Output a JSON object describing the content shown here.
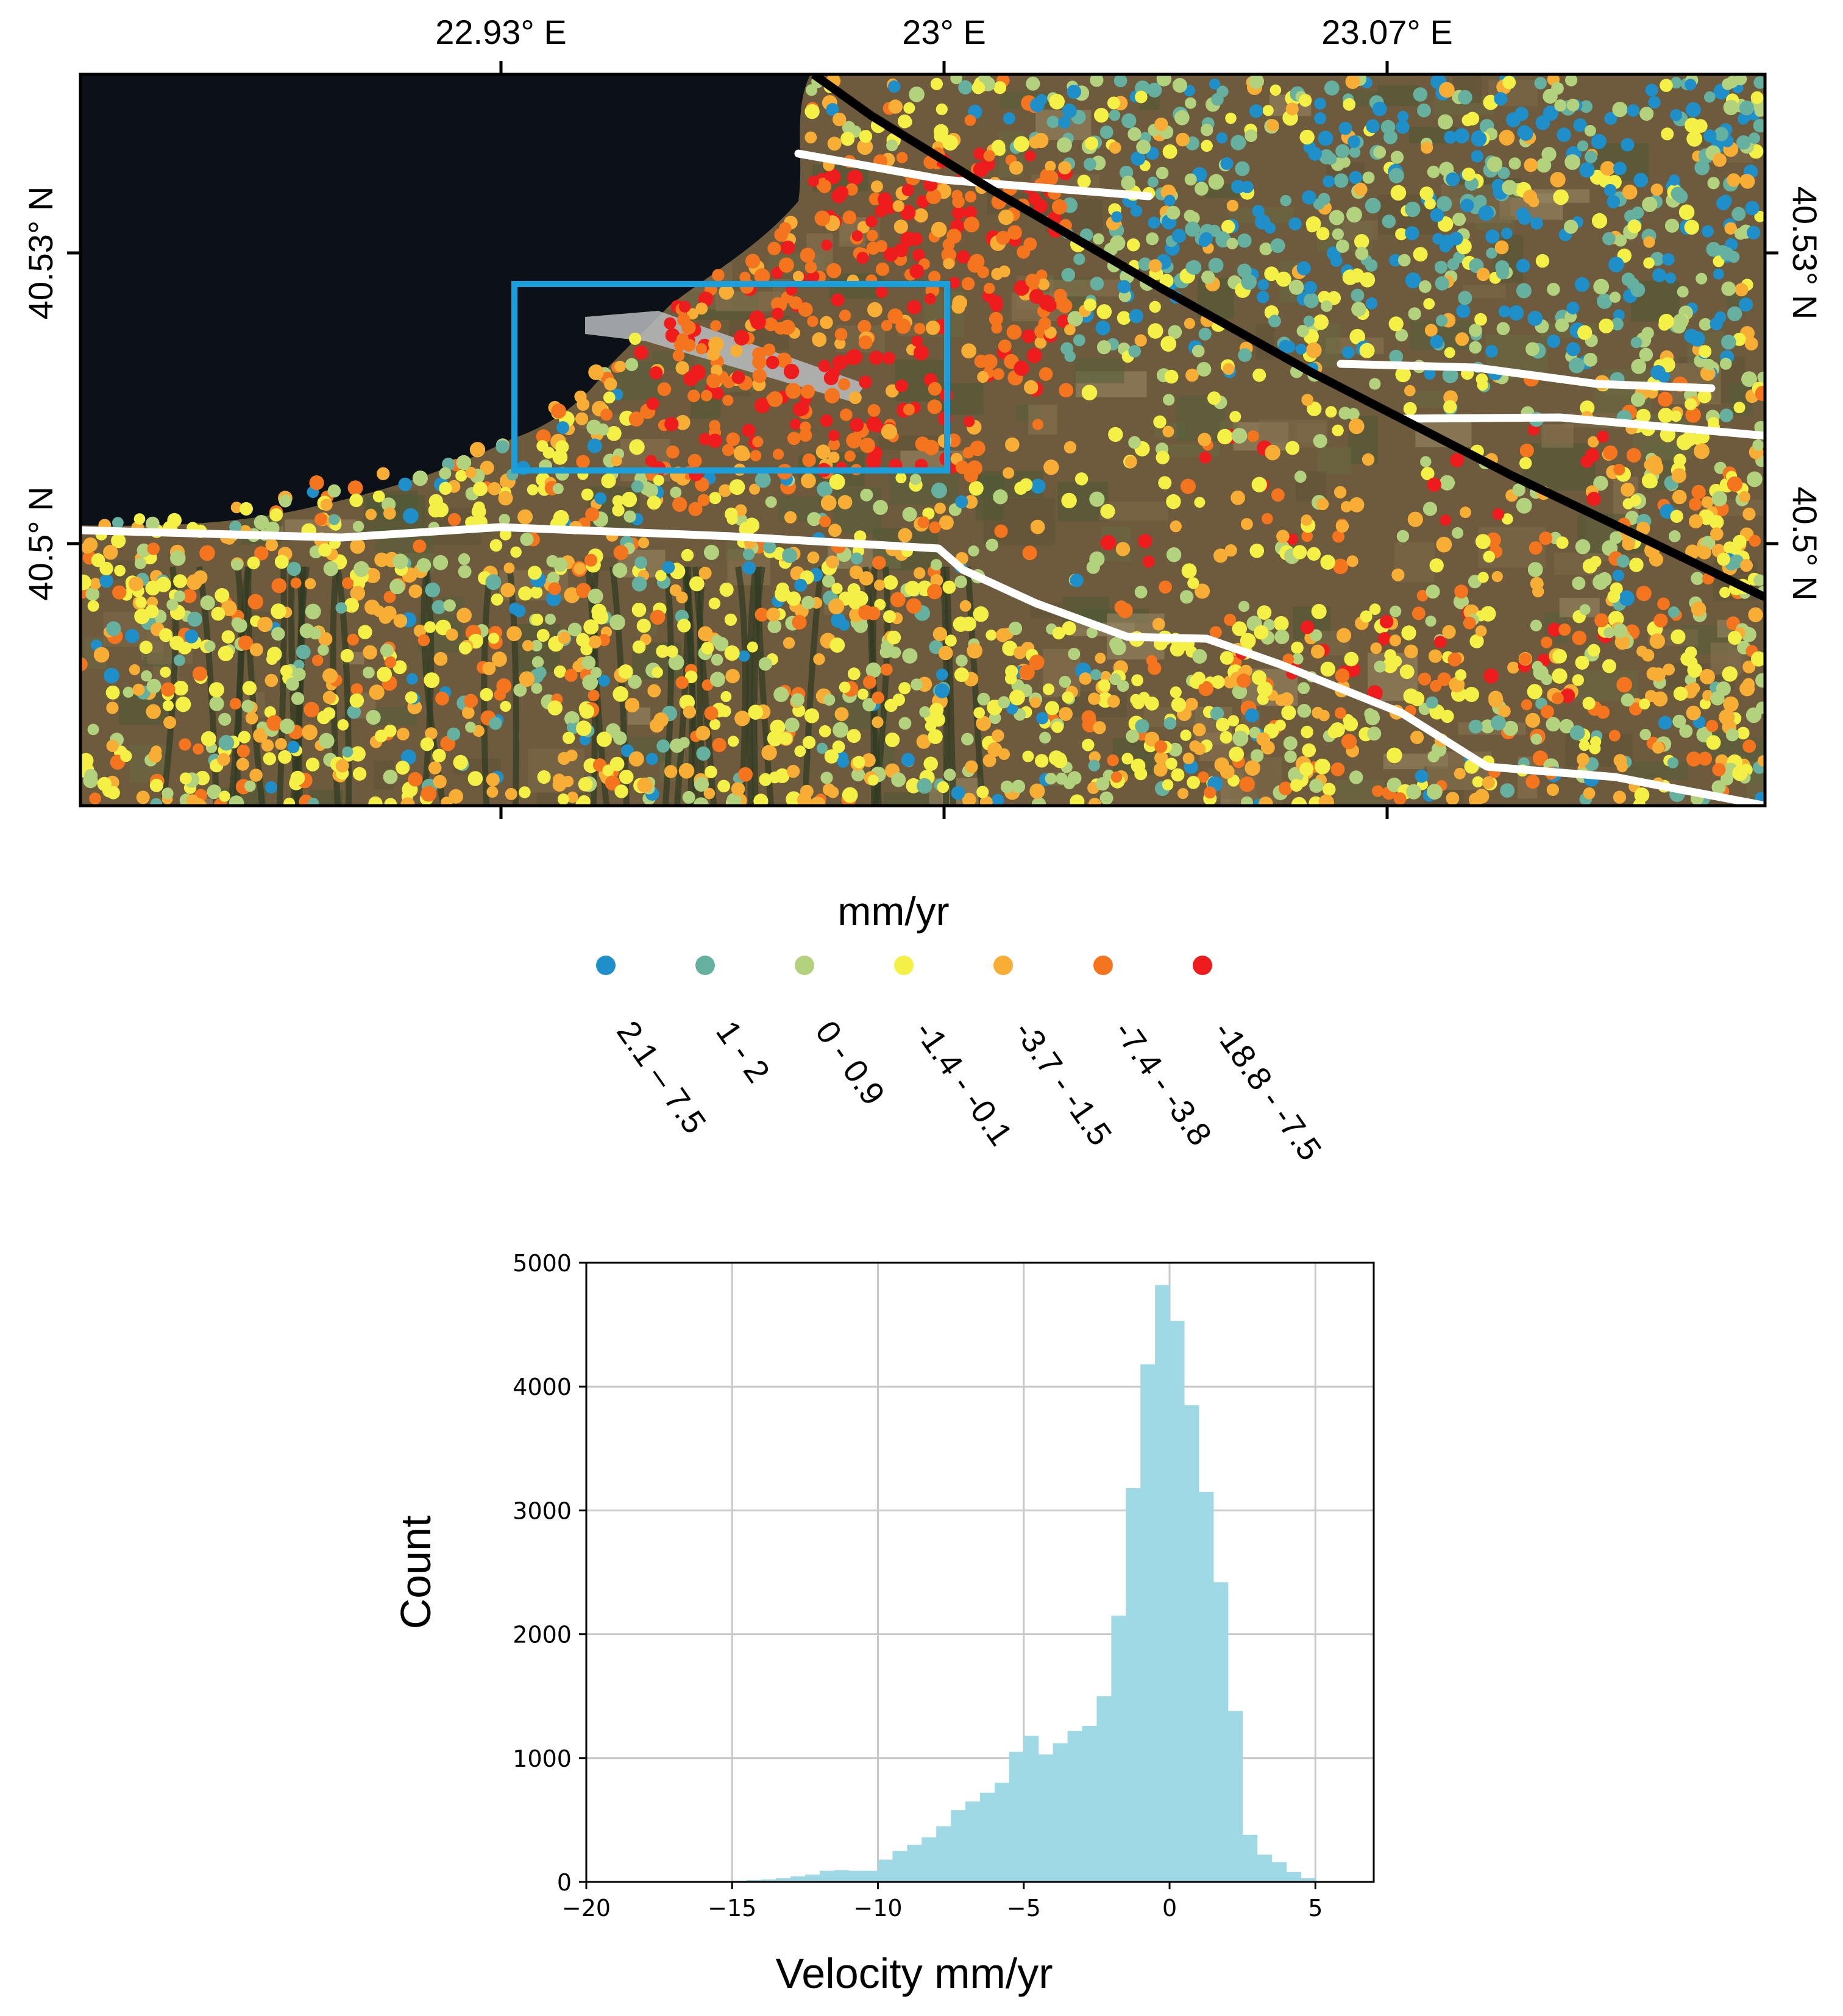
{
  "map": {
    "x_ticks": [
      "22.93° E",
      "23° E",
      "23.07° E"
    ],
    "y_ticks_left": [
      "40.53° N",
      "40.5° N"
    ],
    "y_ticks_right": [
      "40.53° N",
      "40.5° N"
    ]
  },
  "legend": {
    "title": "mm/yr",
    "classes": [
      {
        "label": "2.1 – 7.5",
        "color": "#1f8fc9"
      },
      {
        "label": "1 - 2",
        "color": "#66b0a0"
      },
      {
        "label": "0 - 0.9",
        "color": "#b3d27e"
      },
      {
        "label": "-1.4 - -0.1",
        "color": "#f5f046"
      },
      {
        "label": "-3.7 - -1.5",
        "color": "#f8ad35"
      },
      {
        "label": "-7.4 - -3.8",
        "color": "#f5751e"
      },
      {
        "label": "-18.8 - -7.5",
        "color": "#ee1c1c"
      }
    ]
  },
  "colors": {
    "study_area_box": "#19a0dc",
    "fault_line": "#000000",
    "boundary_lines": "#ffffff",
    "sea": "#0c1117",
    "land": "#6e5a3c",
    "histogram_bar": "#9fd9e6"
  },
  "chart_data": {
    "type": "bar",
    "xlabel": "Velocity mm/yr",
    "ylabel": "Count",
    "xlim": [
      -20,
      7
    ],
    "ylim": [
      0,
      5000
    ],
    "x_ticks": [
      -20,
      -15,
      -10,
      -5,
      0,
      5
    ],
    "y_ticks": [
      0,
      1000,
      2000,
      3000,
      4000,
      5000
    ],
    "x_tick_labels": [
      "−20",
      "−15",
      "−10",
      "−5",
      "0",
      "5"
    ],
    "y_tick_labels": [
      "0",
      "1000",
      "2000",
      "3000",
      "4000",
      "5000"
    ],
    "grid": true,
    "bin_width": 0.5,
    "bins": [
      {
        "x0": -15.5,
        "x1": -15.0,
        "count": 5
      },
      {
        "x0": -15.0,
        "x1": -14.5,
        "count": 10
      },
      {
        "x0": -14.5,
        "x1": -14.0,
        "count": 15
      },
      {
        "x0": -14.0,
        "x1": -13.5,
        "count": 20
      },
      {
        "x0": -13.5,
        "x1": -13.0,
        "count": 30
      },
      {
        "x0": -13.0,
        "x1": -12.5,
        "count": 45
      },
      {
        "x0": -12.5,
        "x1": -12.0,
        "count": 60
      },
      {
        "x0": -12.0,
        "x1": -11.5,
        "count": 90
      },
      {
        "x0": -11.5,
        "x1": -11.0,
        "count": 95
      },
      {
        "x0": -11.0,
        "x1": -10.5,
        "count": 90
      },
      {
        "x0": -10.5,
        "x1": -10.0,
        "count": 90
      },
      {
        "x0": -10.0,
        "x1": -9.5,
        "count": 180
      },
      {
        "x0": -9.5,
        "x1": -9.0,
        "count": 250
      },
      {
        "x0": -9.0,
        "x1": -8.5,
        "count": 300
      },
      {
        "x0": -8.5,
        "x1": -8.0,
        "count": 360
      },
      {
        "x0": -8.0,
        "x1": -7.5,
        "count": 450
      },
      {
        "x0": -7.5,
        "x1": -7.0,
        "count": 580
      },
      {
        "x0": -7.0,
        "x1": -6.5,
        "count": 650
      },
      {
        "x0": -6.5,
        "x1": -6.0,
        "count": 720
      },
      {
        "x0": -6.0,
        "x1": -5.5,
        "count": 800
      },
      {
        "x0": -5.5,
        "x1": -5.0,
        "count": 1050
      },
      {
        "x0": -5.0,
        "x1": -4.5,
        "count": 1180
      },
      {
        "x0": -4.5,
        "x1": -4.0,
        "count": 1030
      },
      {
        "x0": -4.0,
        "x1": -3.5,
        "count": 1120
      },
      {
        "x0": -3.5,
        "x1": -3.0,
        "count": 1220
      },
      {
        "x0": -3.0,
        "x1": -2.5,
        "count": 1260
      },
      {
        "x0": -2.5,
        "x1": -2.0,
        "count": 1500
      },
      {
        "x0": -2.0,
        "x1": -1.5,
        "count": 2150
      },
      {
        "x0": -1.5,
        "x1": -1.0,
        "count": 3180
      },
      {
        "x0": -1.0,
        "x1": -0.5,
        "count": 4180
      },
      {
        "x0": -0.5,
        "x1": 0.0,
        "count": 4820
      },
      {
        "x0": 0.0,
        "x1": 0.5,
        "count": 4530
      },
      {
        "x0": 0.5,
        "x1": 1.0,
        "count": 3850
      },
      {
        "x0": 1.0,
        "x1": 1.5,
        "count": 3150
      },
      {
        "x0": 1.5,
        "x1": 2.0,
        "count": 2420
      },
      {
        "x0": 2.0,
        "x1": 2.5,
        "count": 1380
      },
      {
        "x0": 2.5,
        "x1": 3.0,
        "count": 380
      },
      {
        "x0": 3.0,
        "x1": 3.5,
        "count": 220
      },
      {
        "x0": 3.5,
        "x1": 4.0,
        "count": 160
      },
      {
        "x0": 4.0,
        "x1": 4.5,
        "count": 80
      },
      {
        "x0": 4.5,
        "x1": 5.0,
        "count": 30
      }
    ]
  }
}
